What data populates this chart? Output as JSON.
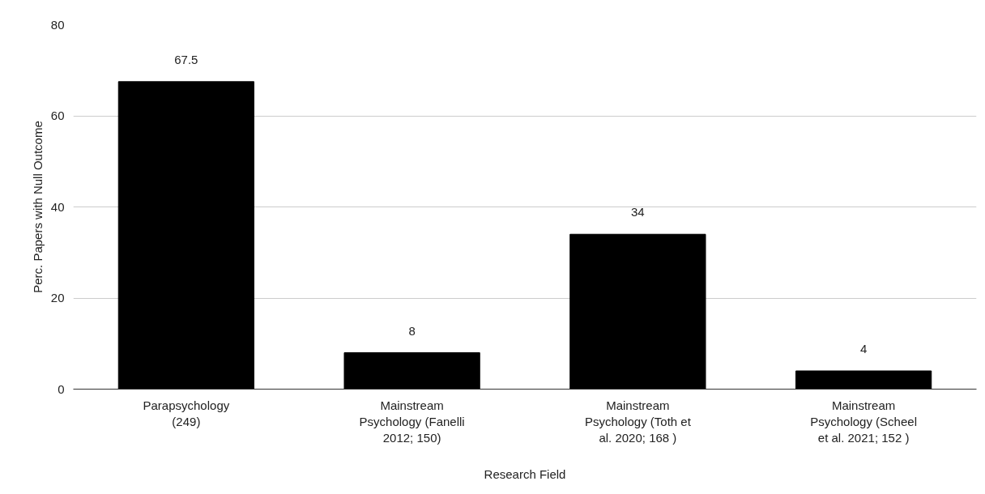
{
  "chart_data": {
    "type": "bar",
    "xlabel": "Research Field",
    "ylabel": "Perc. Papers with Null Outcome",
    "categories": [
      "Parapsychology (249)",
      "Mainstream Psychology (Fanelli 2012; 150)",
      "Mainstream Psychology (Toth et al. 2020; 168 )",
      "Mainstream Psychology (Scheel et al. 2021; 152 )"
    ],
    "values": [
      67.5,
      8,
      34,
      4
    ],
    "color": "#000000",
    "ylim": [
      0,
      80
    ],
    "yticks": [
      0,
      20,
      40,
      60,
      80
    ],
    "grid": "y",
    "data_labels": true
  }
}
